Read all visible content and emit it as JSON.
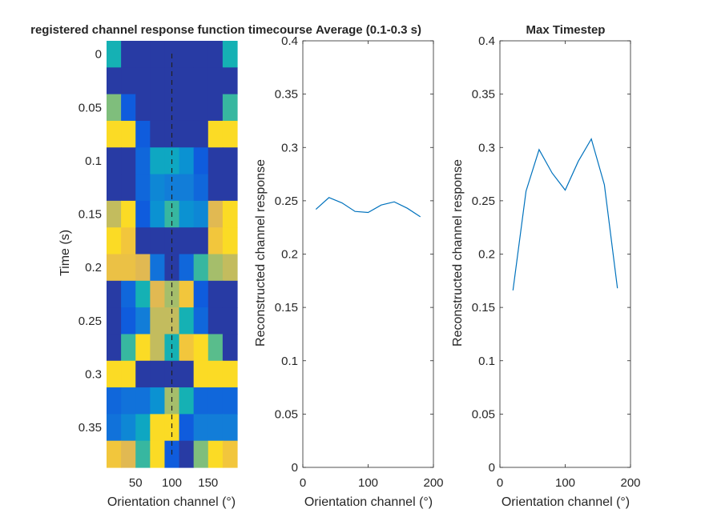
{
  "chart_data": [
    {
      "type": "heatmap",
      "title": "registered channel response function timecourse",
      "xlabel": "Orientation channel (°)",
      "ylabel": "Time (s)",
      "x_ticks": [
        "50",
        "100",
        "150"
      ],
      "y_ticks": [
        "0",
        "0.05",
        "0.1",
        "0.15",
        "0.2",
        "0.25",
        "0.3",
        "0.35"
      ],
      "colormap": "parula",
      "reference_line_channel": 100,
      "x_channels": [
        20,
        40,
        60,
        80,
        100,
        120,
        140,
        160,
        180
      ],
      "y_times": [
        0,
        0.025,
        0.05,
        0.075,
        0.1,
        0.125,
        0.15,
        0.175,
        0.2,
        0.225,
        0.25,
        0.275,
        0.3,
        0.325,
        0.35,
        0.375
      ],
      "values": [
        [
          0.55,
          0.05,
          0.05,
          0.05,
          0.05,
          0.05,
          0.05,
          0.05,
          0.55
        ],
        [
          0.05,
          0.05,
          0.05,
          0.05,
          0.05,
          0.05,
          0.05,
          0.05,
          0.05
        ],
        [
          0.7,
          0.15,
          0.05,
          0.05,
          0.05,
          0.05,
          0.05,
          0.05,
          0.6
        ],
        [
          0.95,
          0.95,
          0.15,
          0.05,
          0.05,
          0.05,
          0.05,
          0.95,
          0.95
        ],
        [
          0.05,
          0.05,
          0.2,
          0.5,
          0.5,
          0.4,
          0.15,
          0.05,
          0.05
        ],
        [
          0.05,
          0.05,
          0.2,
          0.35,
          0.3,
          0.3,
          0.2,
          0.05,
          0.05
        ],
        [
          0.8,
          0.95,
          0.15,
          0.4,
          0.6,
          0.4,
          0.35,
          0.85,
          0.95
        ],
        [
          0.95,
          0.9,
          0.05,
          0.05,
          0.05,
          0.05,
          0.05,
          0.9,
          0.95
        ],
        [
          0.88,
          0.88,
          0.85,
          0.25,
          0.05,
          0.2,
          0.6,
          0.75,
          0.8
        ],
        [
          0.05,
          0.2,
          0.55,
          0.85,
          0.75,
          0.9,
          0.15,
          0.05,
          0.05
        ],
        [
          0.05,
          0.15,
          0.3,
          0.8,
          0.8,
          0.55,
          0.2,
          0.05,
          0.05
        ],
        [
          0.05,
          0.6,
          0.95,
          0.8,
          0.55,
          0.9,
          0.95,
          0.65,
          0.05
        ],
        [
          0.95,
          0.95,
          0.05,
          0.05,
          0.05,
          0.05,
          0.95,
          0.95,
          0.95
        ],
        [
          0.2,
          0.25,
          0.25,
          0.4,
          0.75,
          0.55,
          0.2,
          0.2,
          0.2
        ],
        [
          0.25,
          0.35,
          0.5,
          0.95,
          0.95,
          0.15,
          0.3,
          0.3,
          0.3
        ],
        [
          0.9,
          0.85,
          0.6,
          0.95,
          0.15,
          0.05,
          0.7,
          0.95,
          0.9
        ]
      ]
    },
    {
      "type": "line",
      "title": "Average (0.1-0.3 s)",
      "xlabel": "Orientation channel (°)",
      "ylabel": "Reconstructed channel response",
      "xlim": [
        0,
        200
      ],
      "ylim": [
        0,
        0.4
      ],
      "x_ticks": [
        "0",
        "100",
        "200"
      ],
      "y_ticks": [
        "0",
        "0.05",
        "0.1",
        "0.15",
        "0.2",
        "0.25",
        "0.3",
        "0.35",
        "0.4"
      ],
      "line_color": "#0072BD",
      "x": [
        20,
        40,
        60,
        80,
        100,
        120,
        140,
        160,
        180
      ],
      "y": [
        0.242,
        0.253,
        0.248,
        0.24,
        0.239,
        0.246,
        0.249,
        0.243,
        0.235
      ]
    },
    {
      "type": "line",
      "title": "Max Timestep",
      "xlabel": "Orientation channel (°)",
      "ylabel": "Reconstructed channel response",
      "xlim": [
        0,
        200
      ],
      "ylim": [
        0,
        0.4
      ],
      "x_ticks": [
        "0",
        "100",
        "200"
      ],
      "y_ticks": [
        "0",
        "0.05",
        "0.1",
        "0.15",
        "0.2",
        "0.25",
        "0.3",
        "0.35",
        "0.4"
      ],
      "line_color": "#0072BD",
      "x": [
        20,
        40,
        60,
        80,
        100,
        120,
        140,
        160,
        180
      ],
      "y": [
        0.166,
        0.259,
        0.298,
        0.276,
        0.26,
        0.287,
        0.308,
        0.265,
        0.168
      ]
    }
  ]
}
